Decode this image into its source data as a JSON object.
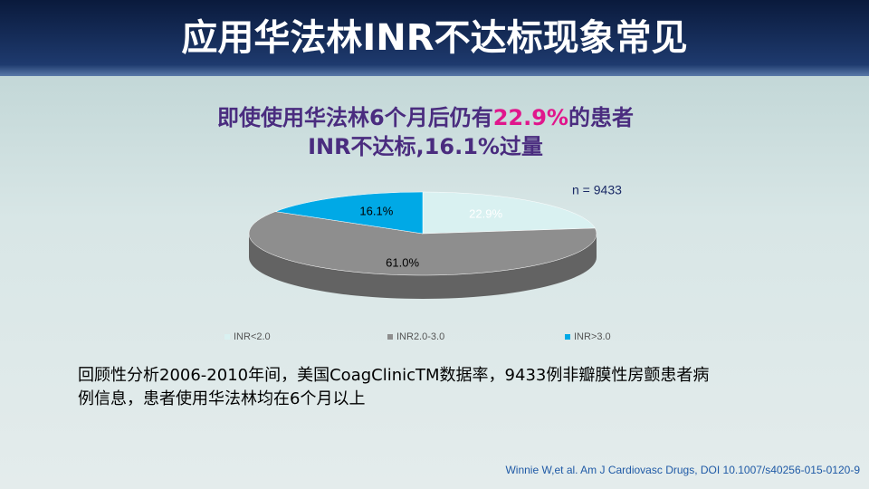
{
  "slide": {
    "title": "应用华法林INR不达标现象常见",
    "body": [
      "回顾性分析2006-2010年间，美国CoagClinicTM数据率，9433例非瓣膜性房颤患者病",
      "例信息，患者使用华法林均在6个月以上"
    ],
    "citation": "Winnie W,et al. Am J Cardiovasc  Drugs, DOI 10.1007/s40256-015-0120-9"
  },
  "chart_data": {
    "type": "pie",
    "title": [
      "即使使用华法林6个月后仍有",
      "22.9%",
      "的患者",
      "INR不达标,16.1%过量"
    ],
    "title_color": "#4a2c7f",
    "title_highlight_color": "#e0168c",
    "annotation": "n = 9433",
    "categories": [
      "INR<2.0",
      "INR2.0-3.0",
      "INR>3.0"
    ],
    "values": [
      22.9,
      61.0,
      16.1
    ],
    "value_labels": [
      "22.9%",
      "61.0%",
      "16.1%"
    ],
    "colors": [
      "#d9f1f1",
      "#8e8e8e",
      "#00a9e6"
    ],
    "legend": "bottom"
  }
}
